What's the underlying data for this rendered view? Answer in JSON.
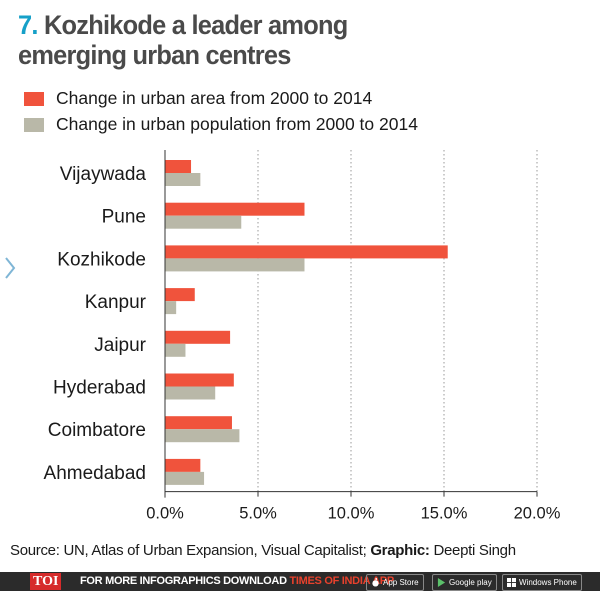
{
  "title": {
    "number": "7.",
    "text": "Kozhikode a leader among emerging urban centres"
  },
  "colors": {
    "area": "#f0533c",
    "population": "#b9b8a8",
    "title_number": "#16a0c8",
    "title_text": "#4a4a4a"
  },
  "legend": [
    {
      "label": "Change in urban area from 2000 to 2014"
    },
    {
      "label": "Change in urban population from 2000 to 2014"
    }
  ],
  "chart_data": {
    "type": "bar",
    "orientation": "horizontal",
    "title": "Kozhikode a leader among emerging urban centres",
    "categories": [
      "Vijaywada",
      "Pune",
      "Kozhikode",
      "Kanpur",
      "Jaipur",
      "Hyderabad",
      "Coimbatore",
      "Ahmedabad"
    ],
    "series": [
      {
        "name": "Change in urban area from 2000 to 2014",
        "values": [
          1.4,
          7.5,
          15.2,
          1.6,
          3.5,
          3.7,
          3.6,
          1.9
        ]
      },
      {
        "name": "Change in urban population from 2000 to 2014",
        "values": [
          1.9,
          4.1,
          7.5,
          0.6,
          1.1,
          2.7,
          4.0,
          2.1
        ]
      }
    ],
    "xlim": [
      0,
      20
    ],
    "xticks": [
      "0.0%",
      "5.0%",
      "10.0%",
      "15.0%",
      "20.0%"
    ],
    "xtick_values": [
      0,
      5,
      10,
      15,
      20
    ],
    "grid": "vertical dotted",
    "legend_position": "top"
  },
  "source": {
    "prefix": "Source: UN, Atlas of Urban Expansion, Visual Capitalist; ",
    "graphic_label": "Graphic:",
    "graphic_author": " Deepti Singh"
  },
  "footer": {
    "logo": "TOI",
    "text": "FOR MORE  INFOGRAPHICS DOWNLOAD ",
    "app_name": "TIMES OF INDIA APP",
    "stores": [
      "App Store",
      "Google play",
      "Windows Phone"
    ]
  }
}
